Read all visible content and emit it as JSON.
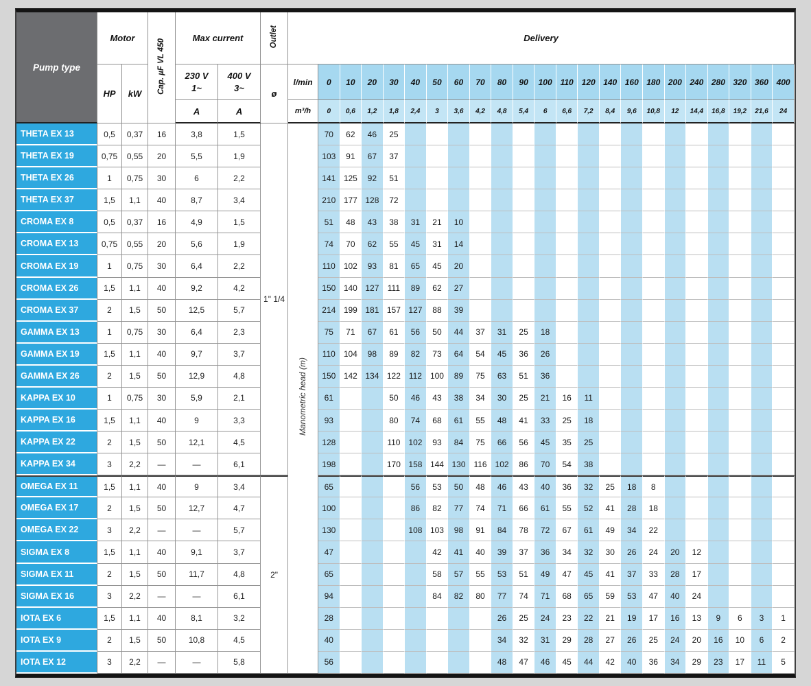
{
  "header": {
    "pump_type": "Pump type",
    "motor": "Motor",
    "cap": "Cap. µF VL 450",
    "max_current": "Max current",
    "outlet": "Outlet",
    "delivery": "Delivery",
    "hp": "HP",
    "kw": "kW",
    "v230": "230 V\n1~",
    "v400": "400 V\n3~",
    "amp": "A",
    "diameter": "ø",
    "lmin": "l/min",
    "m3h": "m³/h",
    "manometric": "Manometric head (m)"
  },
  "colors": {
    "pump_name_bg": "#2ea8df",
    "header_gray_bg": "#6c6d70",
    "delivery_stripe_blue": "#b9dff2",
    "delivery_header_blue": "#a6d8f0"
  },
  "delivery_lmin": [
    "0",
    "10",
    "20",
    "30",
    "40",
    "50",
    "60",
    "70",
    "80",
    "90",
    "100",
    "110",
    "120",
    "140",
    "160",
    "180",
    "200",
    "240",
    "280",
    "320",
    "360",
    "400"
  ],
  "delivery_m3h": [
    "0",
    "0,6",
    "1,2",
    "1,8",
    "2,4",
    "3",
    "3,6",
    "4,2",
    "4,8",
    "5,4",
    "6",
    "6,6",
    "7,2",
    "8,4",
    "9,6",
    "10,8",
    "12",
    "14,4",
    "16,8",
    "19,2",
    "21,6",
    "24"
  ],
  "outlet_groups": [
    {
      "label": "1\" 1/4",
      "rows": 16
    },
    {
      "label": "2\"",
      "rows": 9
    }
  ],
  "rows": [
    {
      "name": "THETA EX 13",
      "hp": "0,5",
      "kw": "0,37",
      "cap": "16",
      "a230": "3,8",
      "a400": "1,5",
      "delivery": [
        "70",
        "62",
        "46",
        "25",
        "",
        "",
        "",
        "",
        "",
        "",
        "",
        "",
        "",
        "",
        "",
        "",
        "",
        "",
        "",
        "",
        "",
        ""
      ]
    },
    {
      "name": "THETA EX 19",
      "hp": "0,75",
      "kw": "0,55",
      "cap": "20",
      "a230": "5,5",
      "a400": "1,9",
      "delivery": [
        "103",
        "91",
        "67",
        "37",
        "",
        "",
        "",
        "",
        "",
        "",
        "",
        "",
        "",
        "",
        "",
        "",
        "",
        "",
        "",
        "",
        "",
        ""
      ]
    },
    {
      "name": "THETA EX 26",
      "hp": "1",
      "kw": "0,75",
      "cap": "30",
      "a230": "6",
      "a400": "2,2",
      "delivery": [
        "141",
        "125",
        "92",
        "51",
        "",
        "",
        "",
        "",
        "",
        "",
        "",
        "",
        "",
        "",
        "",
        "",
        "",
        "",
        "",
        "",
        "",
        ""
      ]
    },
    {
      "name": "THETA EX 37",
      "hp": "1,5",
      "kw": "1,1",
      "cap": "40",
      "a230": "8,7",
      "a400": "3,4",
      "delivery": [
        "210",
        "177",
        "128",
        "72",
        "",
        "",
        "",
        "",
        "",
        "",
        "",
        "",
        "",
        "",
        "",
        "",
        "",
        "",
        "",
        "",
        "",
        ""
      ]
    },
    {
      "name": "CROMA EX 8",
      "hp": "0,5",
      "kw": "0,37",
      "cap": "16",
      "a230": "4,9",
      "a400": "1,5",
      "delivery": [
        "51",
        "48",
        "43",
        "38",
        "31",
        "21",
        "10",
        "",
        "",
        "",
        "",
        "",
        "",
        "",
        "",
        "",
        "",
        "",
        "",
        "",
        "",
        ""
      ]
    },
    {
      "name": "CROMA EX 13",
      "hp": "0,75",
      "kw": "0,55",
      "cap": "20",
      "a230": "5,6",
      "a400": "1,9",
      "delivery": [
        "74",
        "70",
        "62",
        "55",
        "45",
        "31",
        "14",
        "",
        "",
        "",
        "",
        "",
        "",
        "",
        "",
        "",
        "",
        "",
        "",
        "",
        "",
        ""
      ]
    },
    {
      "name": "CROMA EX 19",
      "hp": "1",
      "kw": "0,75",
      "cap": "30",
      "a230": "6,4",
      "a400": "2,2",
      "delivery": [
        "110",
        "102",
        "93",
        "81",
        "65",
        "45",
        "20",
        "",
        "",
        "",
        "",
        "",
        "",
        "",
        "",
        "",
        "",
        "",
        "",
        "",
        "",
        ""
      ]
    },
    {
      "name": "CROMA EX 26",
      "hp": "1,5",
      "kw": "1,1",
      "cap": "40",
      "a230": "9,2",
      "a400": "4,2",
      "delivery": [
        "150",
        "140",
        "127",
        "111",
        "89",
        "62",
        "27",
        "",
        "",
        "",
        "",
        "",
        "",
        "",
        "",
        "",
        "",
        "",
        "",
        "",
        "",
        ""
      ]
    },
    {
      "name": "CROMA EX 37",
      "hp": "2",
      "kw": "1,5",
      "cap": "50",
      "a230": "12,5",
      "a400": "5,7",
      "delivery": [
        "214",
        "199",
        "181",
        "157",
        "127",
        "88",
        "39",
        "",
        "",
        "",
        "",
        "",
        "",
        "",
        "",
        "",
        "",
        "",
        "",
        "",
        "",
        ""
      ]
    },
    {
      "name": "GAMMA EX 13",
      "hp": "1",
      "kw": "0,75",
      "cap": "30",
      "a230": "6,4",
      "a400": "2,3",
      "delivery": [
        "75",
        "71",
        "67",
        "61",
        "56",
        "50",
        "44",
        "37",
        "31",
        "25",
        "18",
        "",
        "",
        "",
        "",
        "",
        "",
        "",
        "",
        "",
        "",
        ""
      ]
    },
    {
      "name": "GAMMA EX 19",
      "hp": "1,5",
      "kw": "1,1",
      "cap": "40",
      "a230": "9,7",
      "a400": "3,7",
      "delivery": [
        "110",
        "104",
        "98",
        "89",
        "82",
        "73",
        "64",
        "54",
        "45",
        "36",
        "26",
        "",
        "",
        "",
        "",
        "",
        "",
        "",
        "",
        "",
        "",
        ""
      ]
    },
    {
      "name": "GAMMA EX 26",
      "hp": "2",
      "kw": "1,5",
      "cap": "50",
      "a230": "12,9",
      "a400": "4,8",
      "delivery": [
        "150",
        "142",
        "134",
        "122",
        "112",
        "100",
        "89",
        "75",
        "63",
        "51",
        "36",
        "",
        "",
        "",
        "",
        "",
        "",
        "",
        "",
        "",
        "",
        ""
      ]
    },
    {
      "name": "KAPPA EX 10",
      "hp": "1",
      "kw": "0,75",
      "cap": "30",
      "a230": "5,9",
      "a400": "2,1",
      "delivery": [
        "61",
        "",
        "",
        "50",
        "46",
        "43",
        "38",
        "34",
        "30",
        "25",
        "21",
        "16",
        "11",
        "",
        "",
        "",
        "",
        "",
        "",
        "",
        "",
        ""
      ]
    },
    {
      "name": "KAPPA EX 16",
      "hp": "1,5",
      "kw": "1,1",
      "cap": "40",
      "a230": "9",
      "a400": "3,3",
      "delivery": [
        "93",
        "",
        "",
        "80",
        "74",
        "68",
        "61",
        "55",
        "48",
        "41",
        "33",
        "25",
        "18",
        "",
        "",
        "",
        "",
        "",
        "",
        "",
        "",
        ""
      ]
    },
    {
      "name": "KAPPA EX 22",
      "hp": "2",
      "kw": "1,5",
      "cap": "50",
      "a230": "12,1",
      "a400": "4,5",
      "delivery": [
        "128",
        "",
        "",
        "110",
        "102",
        "93",
        "84",
        "75",
        "66",
        "56",
        "45",
        "35",
        "25",
        "",
        "",
        "",
        "",
        "",
        "",
        "",
        "",
        ""
      ]
    },
    {
      "name": "KAPPA EX 34",
      "hp": "3",
      "kw": "2,2",
      "cap": "—",
      "a230": "—",
      "a400": "6,1",
      "delivery": [
        "198",
        "",
        "",
        "170",
        "158",
        "144",
        "130",
        "116",
        "102",
        "86",
        "70",
        "54",
        "38",
        "",
        "",
        "",
        "",
        "",
        "",
        "",
        "",
        ""
      ]
    },
    {
      "name": "OMEGA EX 11",
      "hp": "1,5",
      "kw": "1,1",
      "cap": "40",
      "a230": "9",
      "a400": "3,4",
      "delivery": [
        "65",
        "",
        "",
        "",
        "56",
        "53",
        "50",
        "48",
        "46",
        "43",
        "40",
        "36",
        "32",
        "25",
        "18",
        "8",
        "",
        "",
        "",
        "",
        "",
        ""
      ]
    },
    {
      "name": "OMEGA EX 17",
      "hp": "2",
      "kw": "1,5",
      "cap": "50",
      "a230": "12,7",
      "a400": "4,7",
      "delivery": [
        "100",
        "",
        "",
        "",
        "86",
        "82",
        "77",
        "74",
        "71",
        "66",
        "61",
        "55",
        "52",
        "41",
        "28",
        "18",
        "",
        "",
        "",
        "",
        "",
        ""
      ]
    },
    {
      "name": "OMEGA EX 22",
      "hp": "3",
      "kw": "2,2",
      "cap": "—",
      "a230": "—",
      "a400": "5,7",
      "delivery": [
        "130",
        "",
        "",
        "",
        "108",
        "103",
        "98",
        "91",
        "84",
        "78",
        "72",
        "67",
        "61",
        "49",
        "34",
        "22",
        "",
        "",
        "",
        "",
        "",
        ""
      ]
    },
    {
      "name": "SIGMA EX 8",
      "hp": "1,5",
      "kw": "1,1",
      "cap": "40",
      "a230": "9,1",
      "a400": "3,7",
      "delivery": [
        "47",
        "",
        "",
        "",
        "",
        "42",
        "41",
        "40",
        "39",
        "37",
        "36",
        "34",
        "32",
        "30",
        "26",
        "24",
        "20",
        "12",
        "",
        "",
        "",
        ""
      ]
    },
    {
      "name": "SIGMA EX 11",
      "hp": "2",
      "kw": "1,5",
      "cap": "50",
      "a230": "11,7",
      "a400": "4,8",
      "delivery": [
        "65",
        "",
        "",
        "",
        "",
        "58",
        "57",
        "55",
        "53",
        "51",
        "49",
        "47",
        "45",
        "41",
        "37",
        "33",
        "28",
        "17",
        "",
        "",
        "",
        ""
      ]
    },
    {
      "name": "SIGMA EX 16",
      "hp": "3",
      "kw": "2,2",
      "cap": "—",
      "a230": "—",
      "a400": "6,1",
      "delivery": [
        "94",
        "",
        "",
        "",
        "",
        "84",
        "82",
        "80",
        "77",
        "74",
        "71",
        "68",
        "65",
        "59",
        "53",
        "47",
        "40",
        "24",
        "",
        "",
        "",
        ""
      ]
    },
    {
      "name": "IOTA EX 6",
      "hp": "1,5",
      "kw": "1,1",
      "cap": "40",
      "a230": "8,1",
      "a400": "3,2",
      "delivery": [
        "28",
        "",
        "",
        "",
        "",
        "",
        "",
        "",
        "26",
        "25",
        "24",
        "23",
        "22",
        "21",
        "19",
        "17",
        "16",
        "13",
        "9",
        "6",
        "3",
        "1"
      ]
    },
    {
      "name": "IOTA EX 9",
      "hp": "2",
      "kw": "1,5",
      "cap": "50",
      "a230": "10,8",
      "a400": "4,5",
      "delivery": [
        "40",
        "",
        "",
        "",
        "",
        "",
        "",
        "",
        "34",
        "32",
        "31",
        "29",
        "28",
        "27",
        "26",
        "25",
        "24",
        "20",
        "16",
        "10",
        "6",
        "2"
      ]
    },
    {
      "name": "IOTA EX 12",
      "hp": "3",
      "kw": "2,2",
      "cap": "—",
      "a230": "—",
      "a400": "5,8",
      "delivery": [
        "56",
        "",
        "",
        "",
        "",
        "",
        "",
        "",
        "48",
        "47",
        "46",
        "45",
        "44",
        "42",
        "40",
        "36",
        "34",
        "29",
        "23",
        "17",
        "11",
        "5"
      ]
    }
  ]
}
